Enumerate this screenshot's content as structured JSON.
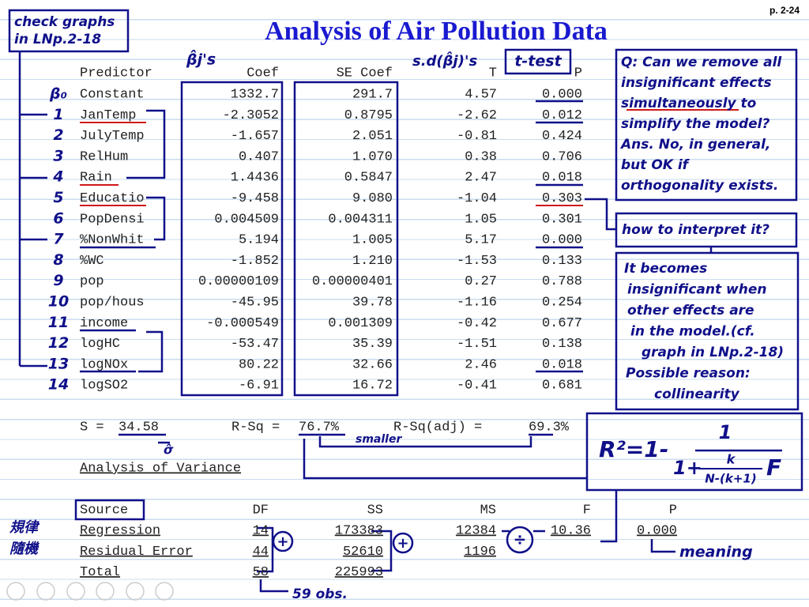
{
  "page_number": "p. 2-24",
  "title": "Analysis of Air Pollution Data",
  "regression": {
    "headers": [
      "Predictor",
      "Coef",
      "SE Coef",
      "T",
      "P"
    ],
    "rows": [
      [
        "Constant",
        "1332.7",
        "291.7",
        "4.57",
        "0.000"
      ],
      [
        "JanTemp",
        "-2.3052",
        "0.8795",
        "-2.62",
        "0.012"
      ],
      [
        "JulyTemp",
        "-1.657",
        "2.051",
        "-0.81",
        "0.424"
      ],
      [
        "RelHum",
        "0.407",
        "1.070",
        "0.38",
        "0.706"
      ],
      [
        "Rain",
        "1.4436",
        "0.5847",
        "2.47",
        "0.018"
      ],
      [
        "Educatio",
        "-9.458",
        "9.080",
        "-1.04",
        "0.303"
      ],
      [
        "PopDensi",
        "0.004509",
        "0.004311",
        "1.05",
        "0.301"
      ],
      [
        "%NonWhit",
        "5.194",
        "1.005",
        "5.17",
        "0.000"
      ],
      [
        "%WC",
        "-1.852",
        "1.210",
        "-1.53",
        "0.133"
      ],
      [
        "pop",
        "0.00000109",
        "0.00000401",
        "0.27",
        "0.788"
      ],
      [
        "pop/hous",
        "-45.95",
        "39.78",
        "-1.16",
        "0.254"
      ],
      [
        "income",
        "-0.000549",
        "0.001309",
        "-0.42",
        "0.677"
      ],
      [
        "logHC",
        "-53.47",
        "35.39",
        "-1.51",
        "0.138"
      ],
      [
        "logNOx",
        "80.22",
        "32.66",
        "2.46",
        "0.018"
      ],
      [
        "logSO2",
        "-6.91",
        "16.72",
        "-0.41",
        "0.681"
      ]
    ]
  },
  "row_markers": [
    "β₀",
    "1",
    "2",
    "3",
    "4",
    "5",
    "6",
    "7",
    "8",
    "9",
    "10",
    "11",
    "12",
    "13",
    "14"
  ],
  "summary": [
    {
      "label": "S =",
      "value": "34.58"
    },
    {
      "label": "R-Sq =",
      "value": "76.7%"
    },
    {
      "label": "R-Sq(adj) =",
      "value": "69.3%"
    }
  ],
  "anova": {
    "title": "Analysis of Variance",
    "headers": [
      "Source",
      "DF",
      "SS",
      "MS",
      "F",
      "P"
    ],
    "rows": [
      [
        "Regression",
        "14",
        "173383",
        "12384",
        "10.36",
        "0.000"
      ],
      [
        "Residual Error",
        "44",
        "52610",
        "1196"
      ],
      [
        "Total",
        "58",
        "225993"
      ]
    ]
  },
  "annotations": {
    "check_graphs": [
      "check graphs",
      "in LNp.2-18"
    ],
    "beta_hat": "β̂j's",
    "sd_beta": "s.d(β̂j)'s",
    "t_test": "t-test",
    "question": [
      "Q: Can we remove all",
      "insignificant effects",
      "simultaneously to",
      "simplify the model?",
      "Ans. No, in general,",
      "but OK if",
      "orthogonality exists."
    ],
    "interpret": "how to interpret it?",
    "explanation": [
      "It becomes",
      "insignificant when",
      "other effects are",
      "in the model.(cf.",
      "graph in LNp.2-18)",
      "Possible reason:",
      "collinearity"
    ],
    "smaller": "smaller",
    "sigma_hat": "σ̂",
    "formula": {
      "lhs": "R²=1-",
      "numerator": "1",
      "denominator": "1+",
      "k": "k",
      "n": "N-(k+1)",
      "f": "F"
    },
    "regular": "規律",
    "random": "隨機",
    "plus": "+",
    "divide": "÷",
    "meaning": "meaning",
    "obs": "59 obs."
  }
}
